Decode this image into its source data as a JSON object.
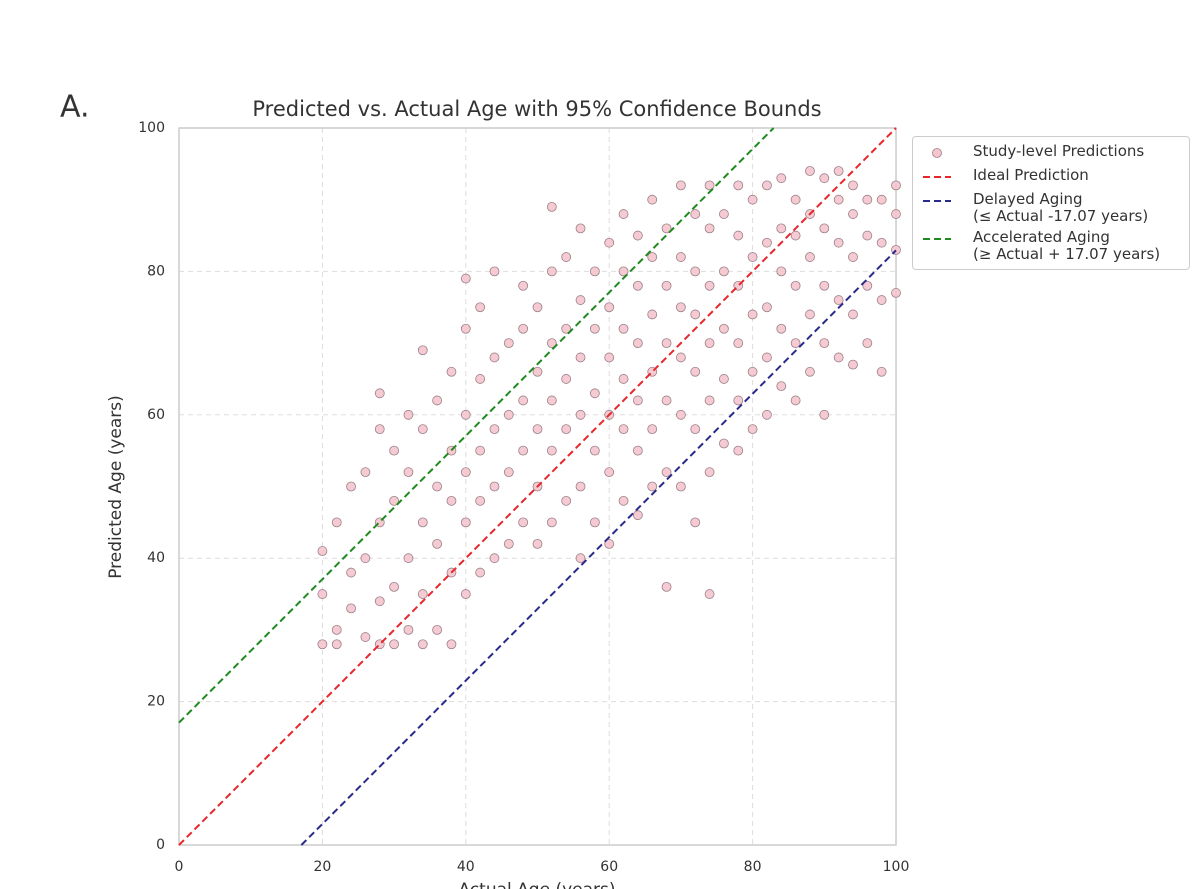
{
  "panel_label": "A.",
  "chart_data": {
    "type": "scatter",
    "title": "Predicted vs. Actual Age with 95% Confidence Bounds",
    "x_label": "Actual Age (years)",
    "y_label": "Predicted Age (years)",
    "xlim": [
      0,
      100
    ],
    "ylim": [
      0,
      100
    ],
    "xticks": [
      0,
      20,
      40,
      60,
      80,
      100
    ],
    "yticks": [
      0,
      20,
      40,
      60,
      80,
      100
    ],
    "grid": true,
    "legend": "outside-right",
    "series": [
      {
        "name": "Study-level Predictions",
        "kind": "scatter",
        "color": "#f5c4cd",
        "x": [
          20,
          20,
          20,
          22,
          22,
          22,
          24,
          24,
          24,
          26,
          26,
          26,
          28,
          28,
          28,
          28,
          28,
          30,
          30,
          30,
          30,
          32,
          32,
          32,
          32,
          34,
          34,
          34,
          34,
          34,
          36,
          36,
          36,
          36,
          38,
          38,
          38,
          38,
          38,
          40,
          40,
          40,
          40,
          40,
          40,
          42,
          42,
          42,
          42,
          42,
          44,
          44,
          44,
          44,
          44,
          46,
          46,
          46,
          46,
          48,
          48,
          48,
          48,
          48,
          50,
          50,
          50,
          50,
          50,
          52,
          52,
          52,
          52,
          52,
          52,
          54,
          54,
          54,
          54,
          54,
          56,
          56,
          56,
          56,
          56,
          56,
          58,
          58,
          58,
          58,
          58,
          60,
          60,
          60,
          60,
          60,
          60,
          62,
          62,
          62,
          62,
          62,
          62,
          64,
          64,
          64,
          64,
          64,
          64,
          66,
          66,
          66,
          66,
          66,
          66,
          68,
          68,
          68,
          68,
          68,
          68,
          70,
          70,
          70,
          70,
          70,
          70,
          72,
          72,
          72,
          72,
          72,
          72,
          74,
          74,
          74,
          74,
          74,
          74,
          74,
          76,
          76,
          76,
          76,
          76,
          78,
          78,
          78,
          78,
          78,
          78,
          80,
          80,
          80,
          80,
          80,
          82,
          82,
          82,
          82,
          82,
          84,
          84,
          84,
          84,
          84,
          86,
          86,
          86,
          86,
          86,
          88,
          88,
          88,
          88,
          88,
          90,
          90,
          90,
          90,
          90,
          92,
          92,
          92,
          92,
          92,
          94,
          94,
          94,
          94,
          94,
          96,
          96,
          96,
          96,
          98,
          98,
          98,
          98,
          100,
          100,
          100,
          100
        ],
        "values": [
          28,
          35,
          41,
          30,
          45,
          28,
          33,
          50,
          38,
          29,
          40,
          52,
          28,
          34,
          45,
          58,
          63,
          28,
          36,
          48,
          55,
          30,
          40,
          52,
          60,
          28,
          35,
          45,
          58,
          69,
          30,
          42,
          50,
          62,
          28,
          38,
          48,
          55,
          66,
          35,
          45,
          52,
          60,
          72,
          79,
          38,
          48,
          55,
          65,
          75,
          40,
          50,
          58,
          68,
          80,
          42,
          52,
          60,
          70,
          45,
          55,
          62,
          72,
          78,
          42,
          50,
          58,
          66,
          75,
          45,
          55,
          62,
          70,
          80,
          89,
          48,
          58,
          65,
          72,
          82,
          40,
          50,
          60,
          68,
          76,
          86,
          45,
          55,
          63,
          72,
          80,
          42,
          52,
          60,
          68,
          75,
          84,
          48,
          58,
          65,
          72,
          80,
          88,
          46,
          55,
          62,
          70,
          78,
          85,
          50,
          58,
          66,
          74,
          82,
          90,
          36,
          52,
          62,
          70,
          78,
          86,
          50,
          60,
          68,
          75,
          82,
          92,
          45,
          58,
          66,
          74,
          80,
          88,
          35,
          52,
          62,
          70,
          78,
          86,
          92,
          56,
          65,
          72,
          80,
          88,
          55,
          62,
          70,
          78,
          85,
          92,
          58,
          66,
          74,
          82,
          90,
          60,
          68,
          75,
          84,
          92,
          64,
          72,
          80,
          86,
          93,
          62,
          70,
          78,
          85,
          90,
          66,
          74,
          82,
          88,
          94,
          60,
          70,
          78,
          86,
          93,
          68,
          76,
          84,
          90,
          94,
          67,
          74,
          82,
          88,
          92,
          70,
          78,
          85,
          90,
          66,
          76,
          84,
          90,
          77,
          83,
          88,
          92
        ]
      },
      {
        "name": "Ideal Prediction",
        "kind": "line",
        "color": "#e8262a",
        "x": [
          0,
          100
        ],
        "values": [
          0,
          100
        ]
      },
      {
        "name": "Delayed Aging\n(≤ Actual -17.07 years)",
        "kind": "line",
        "color": "#2a2a8c",
        "x": [
          17.07,
          100
        ],
        "values": [
          0,
          82.93
        ]
      },
      {
        "name": "Accelerated Aging\n(≥ Actual + 17.07 years)",
        "kind": "line",
        "color": "#1f8a1f",
        "x": [
          0,
          82.93
        ],
        "values": [
          17.07,
          100
        ]
      }
    ]
  }
}
